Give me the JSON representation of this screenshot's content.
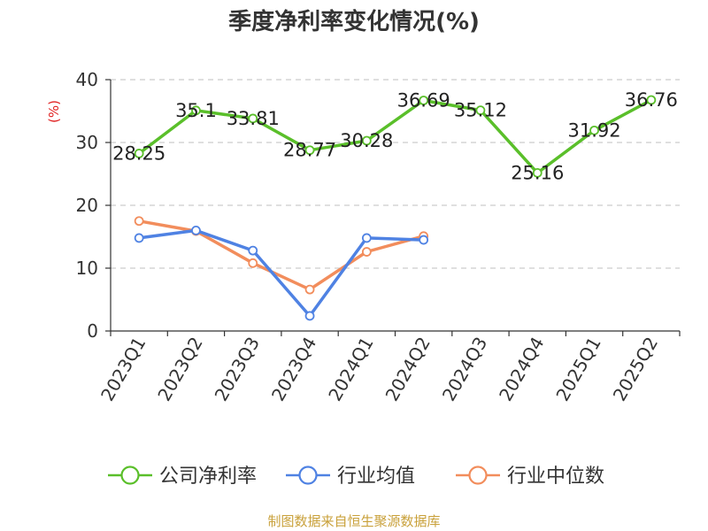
{
  "colors": {
    "company": "#5abf2a",
    "industry_avg": "#4f82e3",
    "industry_median": "#f28d5c",
    "unit_label": "#e02020",
    "source": "#c9a13b",
    "grid": "#cccccc",
    "axis": "#333333"
  },
  "chart_data": {
    "type": "line",
    "title": "季度净利率变化情况(%)",
    "ylabel": "(%)",
    "ylim": [
      0,
      40
    ],
    "yticks": [
      0,
      10,
      20,
      30,
      40
    ],
    "grid": "horizontal-dashed",
    "legend_position": "bottom",
    "categories": [
      "2023Q1",
      "2023Q2",
      "2023Q3",
      "2023Q4",
      "2024Q1",
      "2024Q2",
      "2024Q3",
      "2024Q4",
      "2025Q1",
      "2025Q2"
    ],
    "series": [
      {
        "name": "公司净利率",
        "color_key": "company",
        "values": [
          28.25,
          35.1,
          33.81,
          28.77,
          30.28,
          36.69,
          35.12,
          25.16,
          31.92,
          36.76
        ],
        "labels": [
          "28.25",
          "35.1",
          "33.81",
          "28.77",
          "30.28",
          "36.69",
          "35.12",
          "25.16",
          "31.92",
          "36.76"
        ]
      },
      {
        "name": "行业均值",
        "color_key": "industry_avg",
        "values": [
          14.8,
          16.0,
          12.8,
          2.4,
          14.8,
          14.5,
          null,
          null,
          null,
          null
        ]
      },
      {
        "name": "行业中位数",
        "color_key": "industry_median",
        "values": [
          17.5,
          15.9,
          10.8,
          6.6,
          12.6,
          15.1,
          null,
          null,
          null,
          null
        ]
      }
    ]
  },
  "source_text": "制图数据来自恒生聚源数据库"
}
